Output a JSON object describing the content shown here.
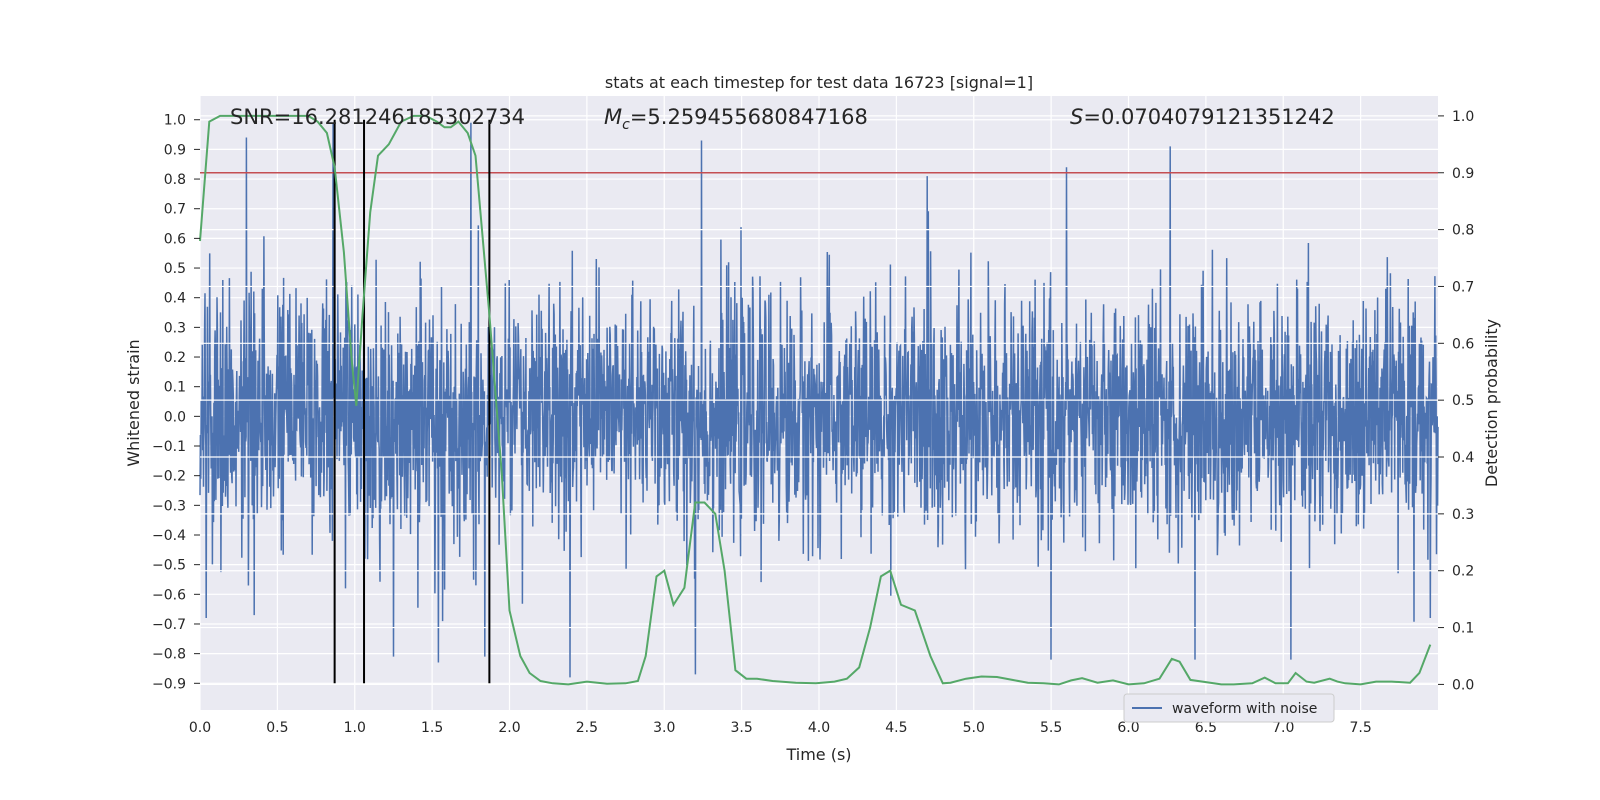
{
  "chart_data": {
    "type": "line",
    "title": "stats at each timestep for test data 16723 [signal=1]",
    "xlabel": "Time (s)",
    "ylabel": "Whitened strain",
    "ylabel_right": "Detection probability",
    "xlim": [
      0.0,
      8.0
    ],
    "ylim": [
      -0.99,
      1.08
    ],
    "ylim_right": [
      -0.045,
      1.035
    ],
    "x_ticks": [
      "0.0",
      "0.5",
      "1.0",
      "1.5",
      "2.0",
      "2.5",
      "3.0",
      "3.5",
      "4.0",
      "4.5",
      "5.0",
      "5.5",
      "6.0",
      "6.5",
      "7.0",
      "7.5"
    ],
    "y_ticks": [
      "-0.9",
      "-0.8",
      "-0.7",
      "-0.6",
      "-0.5",
      "-0.4",
      "-0.3",
      "-0.2",
      "-0.1",
      "0.0",
      "0.1",
      "0.2",
      "0.3",
      "0.4",
      "0.5",
      "0.6",
      "0.7",
      "0.8",
      "0.9",
      "1.0"
    ],
    "y_ticks_right": [
      "0.0",
      "0.1",
      "0.2",
      "0.3",
      "0.4",
      "0.5",
      "0.6",
      "0.7",
      "0.8",
      "0.9",
      "1.0"
    ],
    "annotations": {
      "snr": "SNR=16.281246185302734",
      "mc_symbol": "M",
      "mc_sub": "c",
      "mc_value": "=5.259455680847168",
      "s_symbol": "S",
      "s_value": "=0.0704079121351242"
    },
    "threshold": {
      "axis": "right",
      "value": 0.9,
      "color": "#c44e52"
    },
    "vertical_lines": {
      "color": "#000000",
      "x": [
        0.87,
        1.06,
        1.87
      ],
      "from": -0.9,
      "to": 1.0
    },
    "series": [
      {
        "name": "waveform with noise",
        "axis": "left",
        "color": "#4c72b0",
        "description_note": "",
        "envelope_peaks": [
          {
            "x": 0.04,
            "y": -0.68
          },
          {
            "x": 0.3,
            "y": 0.94
          },
          {
            "x": 0.35,
            "y": -0.67
          },
          {
            "x": 0.86,
            "y": 0.99
          },
          {
            "x": 0.94,
            "y": -0.58
          },
          {
            "x": 1.25,
            "y": -0.81
          },
          {
            "x": 1.54,
            "y": -0.83
          },
          {
            "x": 1.75,
            "y": 0.99
          },
          {
            "x": 1.84,
            "y": -0.81
          },
          {
            "x": 2.39,
            "y": -0.88
          },
          {
            "x": 3.24,
            "y": 0.93
          },
          {
            "x": 3.2,
            "y": -0.87
          },
          {
            "x": 4.7,
            "y": 0.81
          },
          {
            "x": 5.5,
            "y": -0.82
          },
          {
            "x": 5.6,
            "y": 0.84
          },
          {
            "x": 6.27,
            "y": 0.91
          },
          {
            "x": 6.43,
            "y": -0.82
          },
          {
            "x": 7.05,
            "y": -0.82
          },
          {
            "x": 7.95,
            "y": -0.68
          }
        ]
      },
      {
        "name": "",
        "axis": "right",
        "color": "#55a868",
        "x": [
          0.0,
          0.06,
          0.13,
          0.3,
          0.5,
          0.7,
          0.76,
          0.82,
          0.87,
          0.93,
          0.98,
          1.01,
          1.05,
          1.1,
          1.15,
          1.22,
          1.3,
          1.38,
          1.46,
          1.53,
          1.58,
          1.62,
          1.67,
          1.73,
          1.78,
          1.87,
          1.95,
          2.0,
          2.07,
          2.13,
          2.2,
          2.28,
          2.38,
          2.5,
          2.63,
          2.75,
          2.83,
          2.88,
          2.95,
          3.0,
          3.06,
          3.13,
          3.2,
          3.26,
          3.33,
          3.39,
          3.46,
          3.53,
          3.6,
          3.7,
          3.85,
          3.98,
          4.1,
          4.18,
          4.26,
          4.33,
          4.4,
          4.46,
          4.53,
          4.62,
          4.72,
          4.8,
          4.85,
          4.95,
          5.05,
          5.15,
          5.25,
          5.35,
          5.45,
          5.55,
          5.63,
          5.7,
          5.8,
          5.9,
          6.0,
          6.1,
          6.2,
          6.28,
          6.33,
          6.4,
          6.5,
          6.6,
          6.68,
          6.8,
          6.88,
          6.95,
          7.03,
          7.08,
          7.15,
          7.2,
          7.3,
          7.35,
          7.4,
          7.5,
          7.6,
          7.7,
          7.82,
          7.88,
          7.95
        ],
        "y": [
          0.78,
          0.99,
          1.0,
          1.0,
          1.0,
          1.0,
          0.99,
          0.97,
          0.91,
          0.76,
          0.57,
          0.49,
          0.65,
          0.83,
          0.93,
          0.95,
          0.99,
          1.0,
          1.0,
          0.99,
          0.98,
          0.98,
          0.99,
          0.97,
          0.93,
          0.65,
          0.37,
          0.13,
          0.05,
          0.02,
          0.006,
          0.002,
          0.0,
          0.005,
          0.001,
          0.002,
          0.006,
          0.05,
          0.19,
          0.2,
          0.14,
          0.17,
          0.32,
          0.32,
          0.3,
          0.2,
          0.025,
          0.01,
          0.01,
          0.006,
          0.003,
          0.002,
          0.005,
          0.01,
          0.03,
          0.1,
          0.19,
          0.2,
          0.14,
          0.13,
          0.05,
          0.002,
          0.003,
          0.01,
          0.014,
          0.013,
          0.008,
          0.003,
          0.002,
          0.0,
          0.007,
          0.011,
          0.003,
          0.007,
          0.0,
          0.002,
          0.01,
          0.045,
          0.04,
          0.008,
          0.004,
          0.0,
          0.0,
          0.002,
          0.012,
          0.002,
          0.002,
          0.02,
          0.005,
          0.003,
          0.01,
          0.005,
          0.002,
          0.0,
          0.005,
          0.005,
          0.003,
          0.02,
          0.07
        ]
      }
    ],
    "legend": {
      "placement": "bottom-right",
      "entries": [
        "waveform with noise"
      ]
    },
    "grid": true
  }
}
